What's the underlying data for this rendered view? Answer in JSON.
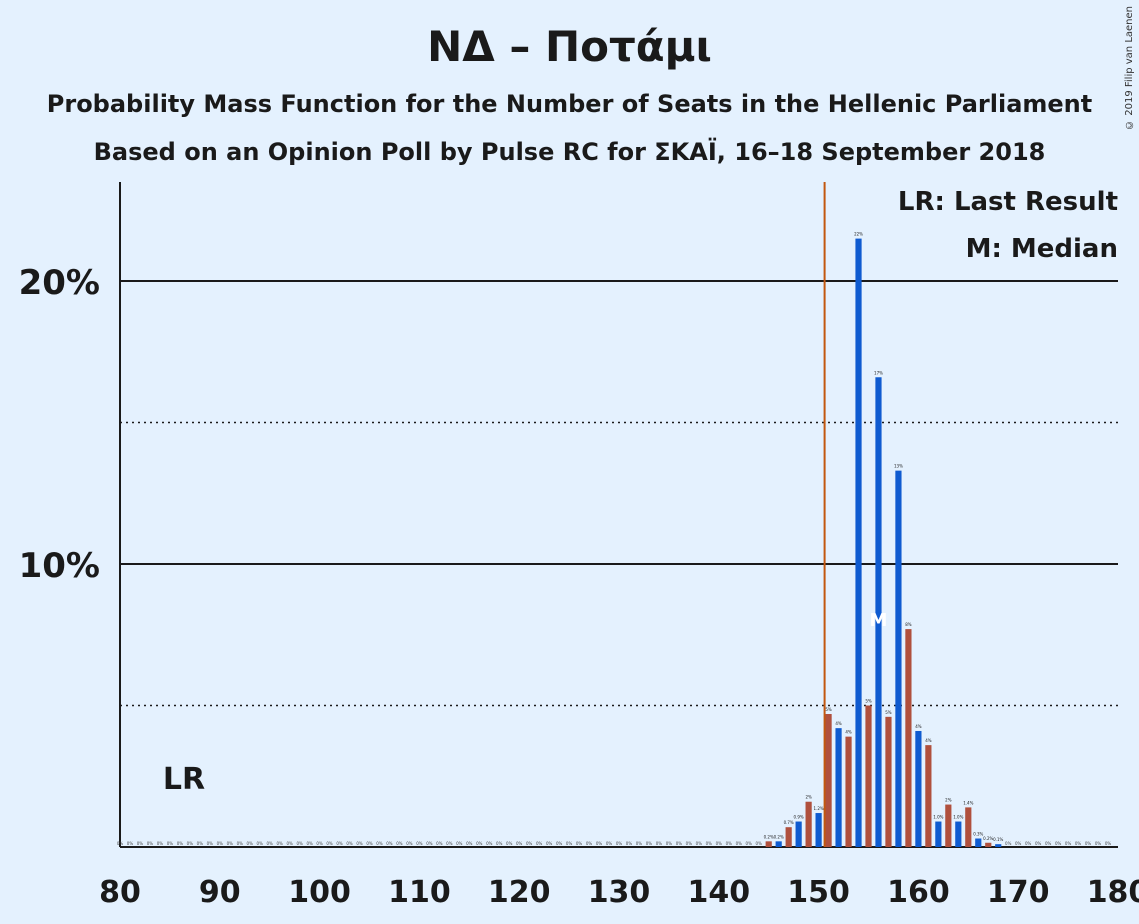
{
  "title": "ΝΔ – Ποτάμι",
  "subtitle_1": "Probability Mass Function for the Number of Seats in the Hellenic Parliament",
  "subtitle_2": "Based on an Opinion Poll by Pulse RC for ΣΚΑΪ, 16–18 September 2018",
  "copyright": "© 2019 Filip van Laenen",
  "legend": {
    "lr": "LR: Last Result",
    "m": "M: Median"
  },
  "colors": {
    "background": "#e4f1fe",
    "blue": "#0f5bd0",
    "brown": "#b0503d",
    "lr_line": "#c2570f",
    "text": "#1a1a1a"
  },
  "chart_data": {
    "type": "bar",
    "xlim": [
      80,
      180
    ],
    "ylim": [
      0,
      23.5
    ],
    "x_ticks": [
      "80",
      "90",
      "100",
      "110",
      "120",
      "130",
      "140",
      "150",
      "160",
      "170",
      "180"
    ],
    "y_ticks": [
      {
        "value": 10,
        "label": "10%"
      },
      {
        "value": 20,
        "label": "20%"
      }
    ],
    "y_dotted": [
      5,
      15
    ],
    "last_result": {
      "seats": 151,
      "label": "LR"
    },
    "median": {
      "seats": 156,
      "label": "M"
    },
    "zero_label": "0%",
    "bars": [
      {
        "x": 145,
        "v": 0.2,
        "label": "0.2%"
      },
      {
        "x": 146,
        "v": 0.2,
        "label": "0.2%"
      },
      {
        "x": 147,
        "v": 0.7,
        "label": "0.7%"
      },
      {
        "x": 148,
        "v": 0.9,
        "label": "0.9%"
      },
      {
        "x": 149,
        "v": 1.6,
        "label": "2%"
      },
      {
        "x": 150,
        "v": 1.2,
        "label": "1.2%"
      },
      {
        "x": 151,
        "v": 4.7,
        "label": "5%"
      },
      {
        "x": 152,
        "v": 4.2,
        "label": "4%"
      },
      {
        "x": 153,
        "v": 3.9,
        "label": "4%"
      },
      {
        "x": 154,
        "v": 21.5,
        "label": "22%"
      },
      {
        "x": 155,
        "v": 5.0,
        "label": "5%"
      },
      {
        "x": 156,
        "v": 16.6,
        "label": "17%"
      },
      {
        "x": 157,
        "v": 4.6,
        "label": "5%"
      },
      {
        "x": 158,
        "v": 13.3,
        "label": "13%"
      },
      {
        "x": 159,
        "v": 7.7,
        "label": "8%"
      },
      {
        "x": 160,
        "v": 4.1,
        "label": "4%"
      },
      {
        "x": 161,
        "v": 3.6,
        "label": "4%"
      },
      {
        "x": 162,
        "v": 0.9,
        "label": "1.0%"
      },
      {
        "x": 163,
        "v": 1.5,
        "label": "2%"
      },
      {
        "x": 164,
        "v": 0.9,
        "label": "1.0%"
      },
      {
        "x": 165,
        "v": 1.4,
        "label": "1.4%"
      },
      {
        "x": 166,
        "v": 0.3,
        "label": "0.3%"
      },
      {
        "x": 167,
        "v": 0.15,
        "label": "0.2%"
      },
      {
        "x": 168,
        "v": 0.1,
        "label": "0.1%"
      }
    ]
  }
}
